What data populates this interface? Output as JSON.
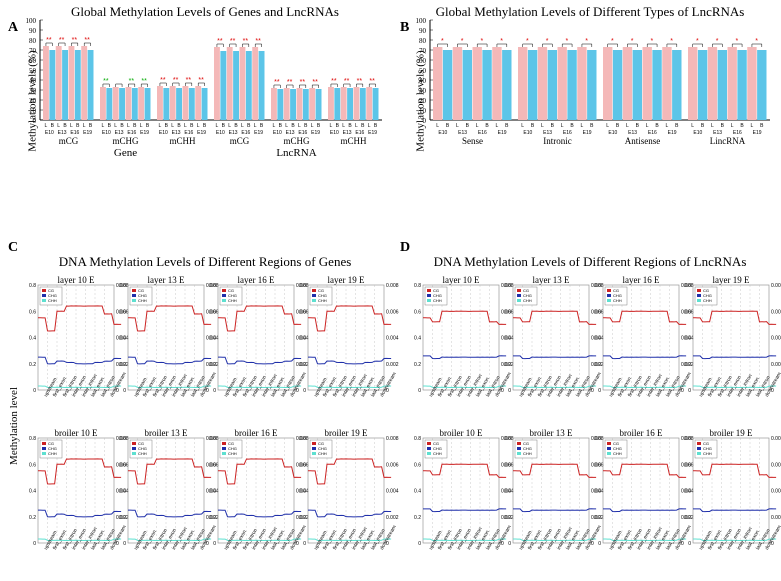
{
  "panelA": {
    "label": "A",
    "title": "Global Methylation Levels of Genes and LncRNAs",
    "y_label": "Methylation levels (%)",
    "ylim": [
      0,
      100
    ],
    "ytick_step": 10,
    "colors": {
      "L": "#f4b8b8",
      "B": "#5cc5e8"
    },
    "categories": [
      "mCG",
      "mCHG",
      "mCHH",
      "mCG",
      "mCHG",
      "mCHH"
    ],
    "groups": [
      "Gene",
      "LncRNA"
    ],
    "timepoints": [
      "E10",
      "E13",
      "E16",
      "E19"
    ],
    "data": {
      "Gene_mCG": {
        "L": [
          74,
          74,
          74,
          74
        ],
        "B": [
          70,
          70,
          70,
          70
        ],
        "sig": [
          "**",
          "**",
          "**",
          "**"
        ],
        "sig_color": "red"
      },
      "Gene_mCHG": {
        "L": [
          33,
          33,
          33,
          33
        ],
        "B": [
          32,
          32,
          32,
          32
        ],
        "sig": [
          "**",
          "",
          "**",
          "**"
        ],
        "sig_color": "green"
      },
      "Gene_mCHH": {
        "L": [
          34,
          34,
          34,
          34
        ],
        "B": [
          32,
          32,
          32,
          32
        ],
        "sig": [
          "**",
          "**",
          "**",
          "**"
        ],
        "sig_color": "red"
      },
      "LncRNA_mCG": {
        "L": [
          73,
          73,
          73,
          73
        ],
        "B": [
          69,
          69,
          69,
          69
        ],
        "sig": [
          "**",
          "**",
          "**",
          "**"
        ],
        "sig_color": "red"
      },
      "LncRNA_mCHG": {
        "L": [
          32,
          32,
          32,
          32
        ],
        "B": [
          31,
          31,
          31,
          31
        ],
        "sig": [
          "**",
          "**",
          "**",
          "**"
        ],
        "sig_color": "red"
      },
      "LncRNA_mCHH": {
        "L": [
          33,
          33,
          33,
          33
        ],
        "B": [
          32,
          32,
          32,
          32
        ],
        "sig": [
          "**",
          "**",
          "**",
          "**"
        ],
        "sig_color": "red"
      }
    },
    "title_fontsize": 13,
    "label_fontsize": 11,
    "bg": "#ffffff"
  },
  "panelB": {
    "label": "B",
    "title": "Global Methylation Levels of Different Types of LncRNAs",
    "y_label": "Methylation levels (%)",
    "ylim": [
      0,
      100
    ],
    "ytick_step": 10,
    "colors": {
      "L": "#f4b8b8",
      "B": "#5cc5e8"
    },
    "categories": [
      "Sense",
      "Intronic",
      "Antisense",
      "LincRNA"
    ],
    "timepoints": [
      "E10",
      "E13",
      "E16",
      "E19"
    ],
    "data": {
      "Sense": {
        "L": [
          73,
          73,
          73,
          73
        ],
        "B": [
          70,
          70,
          70,
          70
        ],
        "sig": [
          "*",
          "*",
          "*",
          "*"
        ]
      },
      "Intronic": {
        "L": [
          73,
          73,
          73,
          73
        ],
        "B": [
          70,
          70,
          70,
          70
        ],
        "sig": [
          "*",
          "*",
          "*",
          "*"
        ]
      },
      "Antisense": {
        "L": [
          73,
          73,
          73,
          73
        ],
        "B": [
          70,
          70,
          70,
          70
        ],
        "sig": [
          "*",
          "*",
          "*",
          "*"
        ]
      },
      "LincRNA": {
        "L": [
          73,
          73,
          73,
          73
        ],
        "B": [
          70,
          70,
          70,
          70
        ],
        "sig": [
          "*",
          "*",
          "*",
          "*"
        ]
      }
    },
    "title_fontsize": 13,
    "label_fontsize": 11,
    "bg": "#ffffff"
  },
  "panelC": {
    "label": "C",
    "title": "DNA Methylation Levels of Different Regions of Genes",
    "y_label": "Methylation level",
    "subplots": [
      "layer 10 E",
      "layer 13 E",
      "layer 16 E",
      "layer 19 E",
      "broiler 10 E",
      "broiler 13 E",
      "broiler 16 E",
      "broiler 19 E"
    ],
    "x_regions": [
      "upstream",
      "first_exon",
      "first_intron",
      "inter_exon",
      "inter_intron",
      "last_exon",
      "last_intron",
      "downstream"
    ],
    "series": {
      "CG": {
        "color": "#cc2222",
        "y": [
          0.55,
          0.45,
          0.6,
          0.64,
          0.64,
          0.64,
          0.64,
          0.58,
          0.5
        ]
      },
      "CHG": {
        "color": "#2030aa",
        "y": [
          0.025,
          0.02,
          0.022,
          0.021,
          0.02,
          0.02,
          0.021,
          0.022,
          0.024
        ]
      },
      "CHH": {
        "color": "#5ee0d0",
        "y": [
          0.003,
          0.002,
          0.002,
          0.002,
          0.002,
          0.002,
          0.002,
          0.002,
          0.003
        ]
      }
    },
    "ylim_left": [
      0,
      0.8
    ],
    "ylim_right": [
      0,
      0.008
    ],
    "legend": [
      "CG",
      "CHG",
      "CHH"
    ]
  },
  "panelD": {
    "label": "D",
    "title": "DNA Methylation Levels of Different Regions of LncRNAs",
    "y_label": "Methylation level",
    "subplots": [
      "layer 10 E",
      "layer 13 E",
      "layer 16 E",
      "layer 19 E",
      "broiler 10 E",
      "broiler 13 E",
      "broiler 16 E",
      "broiler 19 E"
    ],
    "x_regions": [
      "upstream",
      "first_exon",
      "first_intron",
      "inter_exon",
      "inter_intron",
      "last_exon",
      "last_intron",
      "downstream"
    ],
    "series": {
      "CG": {
        "color": "#cc2222",
        "y": [
          0.55,
          0.52,
          0.6,
          0.6,
          0.6,
          0.6,
          0.6,
          0.52,
          0.5
        ]
      },
      "CHG": {
        "color": "#2030aa",
        "y": [
          0.026,
          0.024,
          0.025,
          0.025,
          0.025,
          0.025,
          0.025,
          0.025,
          0.026
        ]
      },
      "CHH": {
        "color": "#5ee0d0",
        "y": [
          0.003,
          0.002,
          0.002,
          0.002,
          0.002,
          0.002,
          0.002,
          0.002,
          0.003
        ]
      }
    },
    "ylim_left": [
      0,
      0.8
    ],
    "ylim_right": [
      0,
      0.008
    ],
    "legend": [
      "CG",
      "CHG",
      "CHH"
    ]
  }
}
